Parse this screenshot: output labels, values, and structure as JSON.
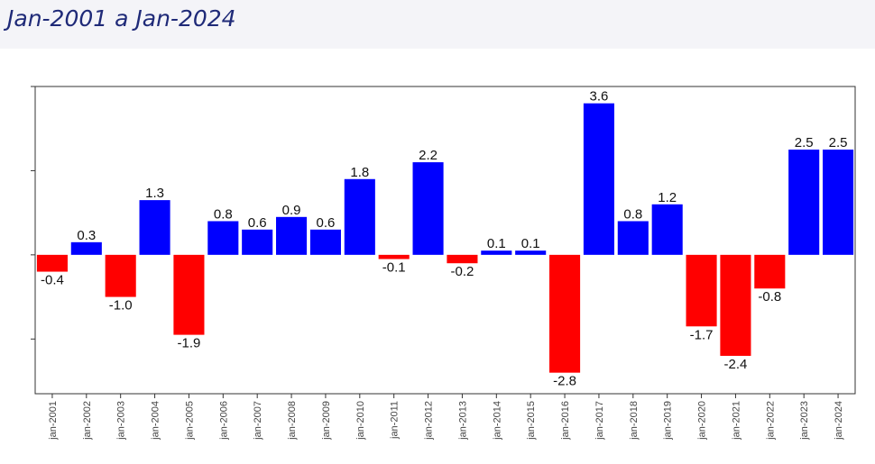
{
  "header": {
    "title": "Jan-2001 a Jan-2024"
  },
  "colors": {
    "positive": "#0000ff",
    "negative": "#ff0000",
    "title": "#1f2a78"
  },
  "chart_data": {
    "type": "bar",
    "title": "",
    "xlabel": "",
    "ylabel": "",
    "categories": [
      "jan-2001",
      "jan-2002",
      "jan-2003",
      "jan-2004",
      "jan-2005",
      "jan-2006",
      "jan-2007",
      "jan-2008",
      "jan-2009",
      "jan-2010",
      "jan-2011",
      "jan-2012",
      "jan-2013",
      "jan-2014",
      "jan-2015",
      "jan-2016",
      "jan-2017",
      "jan-2018",
      "jan-2019",
      "jan-2020",
      "jan-2021",
      "jan-2022",
      "jan-2023",
      "jan-2024"
    ],
    "values": [
      -0.4,
      0.3,
      -1.0,
      1.3,
      -1.9,
      0.8,
      0.6,
      0.9,
      0.6,
      1.8,
      -0.1,
      2.2,
      -0.2,
      0.1,
      0.1,
      -2.8,
      3.6,
      0.8,
      1.2,
      -1.7,
      -2.4,
      -0.8,
      2.5,
      2.5
    ],
    "data_labels": [
      "-0.4",
      "0.3",
      "-1.0",
      "1.3",
      "-1.9",
      "0.8",
      "0.6",
      "0.9",
      "0.6",
      "1.8",
      "-0.1",
      "2.2",
      "-0.2",
      "0.1",
      "0.1",
      "-2.8",
      "3.6",
      "0.8",
      "1.2",
      "-1.7",
      "-2.4",
      "-0.8",
      "2.5",
      "2.5"
    ],
    "ylim": [
      -3.3,
      4.0
    ],
    "y_ticks": [
      -2,
      0,
      2,
      4
    ],
    "y_tick_labels_visible": false,
    "grid": false,
    "legend": "none"
  }
}
